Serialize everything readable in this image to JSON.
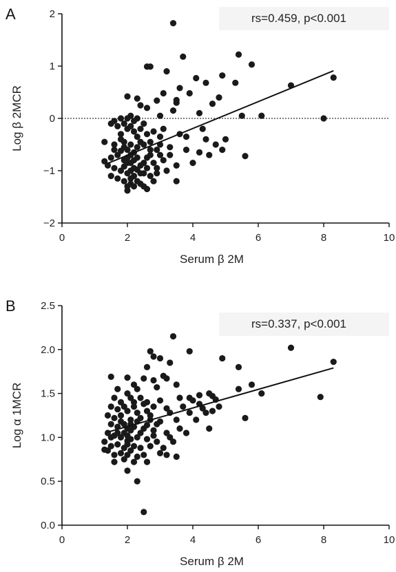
{
  "chart_data": [
    {
      "type": "scatter",
      "panel": "A",
      "xlabel": "Serum β 2M",
      "ylabel": "Log β 2MCR",
      "xlim": [
        0,
        10
      ],
      "ylim": [
        -2,
        2
      ],
      "x_ticks": [
        0,
        2,
        4,
        6,
        8,
        10
      ],
      "y_ticks": [
        -2,
        -1,
        0,
        1,
        2
      ],
      "x_tick_labels": [
        "0",
        "2",
        "4",
        "6",
        "8",
        "10"
      ],
      "y_tick_labels": [
        "−2",
        "−1",
        "0",
        "1",
        "2"
      ],
      "annotation": "rs=0.459, p<0.001",
      "reference_line_y": 0,
      "fit_line": {
        "x": [
          1.4,
          8.3
        ],
        "y": [
          -0.86,
          0.91
        ]
      },
      "points": [
        [
          3.4,
          1.82
        ],
        [
          5.4,
          1.22
        ],
        [
          3.7,
          1.18
        ],
        [
          5.8,
          1.03
        ],
        [
          2.6,
          0.99
        ],
        [
          2.7,
          0.99
        ],
        [
          3.2,
          0.9
        ],
        [
          4.9,
          0.82
        ],
        [
          4.1,
          0.77
        ],
        [
          4.4,
          0.68
        ],
        [
          5.3,
          0.68
        ],
        [
          7.0,
          0.63
        ],
        [
          8.3,
          0.78
        ],
        [
          3.6,
          0.58
        ],
        [
          3.1,
          0.48
        ],
        [
          3.9,
          0.48
        ],
        [
          2.0,
          0.42
        ],
        [
          2.3,
          0.38
        ],
        [
          4.8,
          0.4
        ],
        [
          2.9,
          0.34
        ],
        [
          3.5,
          0.3
        ],
        [
          3.5,
          0.35
        ],
        [
          4.6,
          0.28
        ],
        [
          2.4,
          0.25
        ],
        [
          2.6,
          0.2
        ],
        [
          3.4,
          0.15
        ],
        [
          4.2,
          0.1
        ],
        [
          6.1,
          0.05
        ],
        [
          8.0,
          0.0
        ],
        [
          5.5,
          0.05
        ],
        [
          3.0,
          0.05
        ],
        [
          1.6,
          -0.05
        ],
        [
          1.8,
          0.0
        ],
        [
          2.0,
          0.0
        ],
        [
          2.1,
          0.05
        ],
        [
          2.2,
          -0.05
        ],
        [
          2.3,
          0.0
        ],
        [
          1.5,
          -0.1
        ],
        [
          1.7,
          -0.15
        ],
        [
          1.9,
          -0.1
        ],
        [
          2.0,
          -0.2
        ],
        [
          2.1,
          -0.15
        ],
        [
          2.2,
          -0.25
        ],
        [
          2.4,
          -0.2
        ],
        [
          2.5,
          -0.1
        ],
        [
          2.6,
          -0.3
        ],
        [
          2.8,
          -0.25
        ],
        [
          3.1,
          -0.2
        ],
        [
          3.6,
          -0.3
        ],
        [
          4.4,
          -0.4
        ],
        [
          4.7,
          -0.5
        ],
        [
          5.0,
          -0.4
        ],
        [
          1.3,
          -0.45
        ],
        [
          1.6,
          -0.5
        ],
        [
          1.8,
          -0.4
        ],
        [
          1.9,
          -0.55
        ],
        [
          2.0,
          -0.6
        ],
        [
          2.1,
          -0.5
        ],
        [
          2.2,
          -0.65
        ],
        [
          2.3,
          -0.55
        ],
        [
          2.5,
          -0.5
        ],
        [
          2.7,
          -0.45
        ],
        [
          3.0,
          -0.5
        ],
        [
          3.3,
          -0.55
        ],
        [
          3.8,
          -0.6
        ],
        [
          4.2,
          -0.65
        ],
        [
          4.5,
          -0.7
        ],
        [
          4.9,
          -0.6
        ],
        [
          5.6,
          -0.72
        ],
        [
          1.5,
          -0.75
        ],
        [
          1.7,
          -0.7
        ],
        [
          1.9,
          -0.8
        ],
        [
          2.0,
          -0.75
        ],
        [
          2.1,
          -0.85
        ],
        [
          2.2,
          -0.8
        ],
        [
          2.4,
          -0.9
        ],
        [
          2.6,
          -0.75
        ],
        [
          2.8,
          -0.85
        ],
        [
          3.1,
          -0.8
        ],
        [
          3.5,
          -0.9
        ],
        [
          4.0,
          -0.85
        ],
        [
          1.3,
          -0.82
        ],
        [
          1.4,
          -0.9
        ],
        [
          1.6,
          -0.95
        ],
        [
          1.8,
          -1.0
        ],
        [
          1.9,
          -0.92
        ],
        [
          2.0,
          -1.05
        ],
        [
          2.1,
          -1.0
        ],
        [
          2.2,
          -1.1
        ],
        [
          2.3,
          -0.98
        ],
        [
          2.5,
          -1.05
        ],
        [
          2.7,
          -1.1
        ],
        [
          2.9,
          -0.95
        ],
        [
          3.2,
          -1.0
        ],
        [
          3.5,
          -1.2
        ],
        [
          1.5,
          -1.1
        ],
        [
          1.7,
          -1.15
        ],
        [
          1.9,
          -1.2
        ],
        [
          2.0,
          -1.3
        ],
        [
          2.1,
          -1.25
        ],
        [
          2.3,
          -1.2
        ],
        [
          2.5,
          -1.3
        ],
        [
          2.6,
          -1.35
        ],
        [
          2.2,
          -1.3
        ],
        [
          2.4,
          -1.25
        ],
        [
          2.8,
          -1.2
        ],
        [
          2.0,
          -1.38
        ],
        [
          1.8,
          -0.3
        ],
        [
          2.3,
          -0.35
        ],
        [
          2.7,
          -0.6
        ],
        [
          3.3,
          -0.7
        ],
        [
          2.9,
          -1.05
        ],
        [
          1.6,
          -0.6
        ],
        [
          2.5,
          -0.85
        ],
        [
          2.1,
          -0.7
        ],
        [
          3.0,
          -0.35
        ],
        [
          3.8,
          -0.35
        ],
        [
          2.4,
          -0.45
        ],
        [
          2.6,
          -0.95
        ],
        [
          1.9,
          -0.45
        ],
        [
          2.2,
          -0.95
        ],
        [
          2.0,
          -0.85
        ],
        [
          2.3,
          -0.75
        ],
        [
          1.8,
          -0.62
        ],
        [
          2.1,
          -1.15
        ],
        [
          2.4,
          -1.05
        ],
        [
          3.0,
          -0.7
        ],
        [
          2.7,
          -0.7
        ],
        [
          4.3,
          -0.2
        ],
        [
          2.9,
          -0.6
        ]
      ]
    },
    {
      "type": "scatter",
      "panel": "B",
      "xlabel": "Serum β 2M",
      "ylabel": "Log α 1MCR",
      "xlim": [
        0,
        10
      ],
      "ylim": [
        0,
        2.5
      ],
      "x_ticks": [
        0,
        2,
        4,
        6,
        8,
        10
      ],
      "y_ticks": [
        0,
        0.5,
        1.0,
        1.5,
        2.0,
        2.5
      ],
      "x_tick_labels": [
        "0",
        "2",
        "4",
        "6",
        "8",
        "10"
      ],
      "y_tick_labels": [
        "0.0",
        "0.5",
        "1.0",
        "1.5",
        "2.0",
        "2.5"
      ],
      "annotation": "rs=0.337, p<0.001",
      "fit_line": {
        "x": [
          1.4,
          8.3
        ],
        "y": [
          1.06,
          1.79
        ]
      },
      "points": [
        [
          3.4,
          2.15
        ],
        [
          7.0,
          2.02
        ],
        [
          3.9,
          1.98
        ],
        [
          2.7,
          1.98
        ],
        [
          2.8,
          1.92
        ],
        [
          3.0,
          1.9
        ],
        [
          4.9,
          1.9
        ],
        [
          3.3,
          1.85
        ],
        [
          5.4,
          1.8
        ],
        [
          8.3,
          1.86
        ],
        [
          2.6,
          1.8
        ],
        [
          3.1,
          1.7
        ],
        [
          3.2,
          1.67
        ],
        [
          1.5,
          1.69
        ],
        [
          2.0,
          1.68
        ],
        [
          2.5,
          1.67
        ],
        [
          2.8,
          1.65
        ],
        [
          3.5,
          1.6
        ],
        [
          5.8,
          1.6
        ],
        [
          2.2,
          1.6
        ],
        [
          2.9,
          1.57
        ],
        [
          5.4,
          1.55
        ],
        [
          1.7,
          1.55
        ],
        [
          2.3,
          1.55
        ],
        [
          6.1,
          1.5
        ],
        [
          4.5,
          1.5
        ],
        [
          4.2,
          1.48
        ],
        [
          4.6,
          1.47
        ],
        [
          7.9,
          1.46
        ],
        [
          3.6,
          1.45
        ],
        [
          4.0,
          1.42
        ],
        [
          2.0,
          1.5
        ],
        [
          2.1,
          1.45
        ],
        [
          1.6,
          1.45
        ],
        [
          1.8,
          1.4
        ],
        [
          2.4,
          1.45
        ],
        [
          2.6,
          1.4
        ],
        [
          3.0,
          1.42
        ],
        [
          4.7,
          1.43
        ],
        [
          1.9,
          1.35
        ],
        [
          2.2,
          1.35
        ],
        [
          2.5,
          1.38
        ],
        [
          2.8,
          1.35
        ],
        [
          3.2,
          1.33
        ],
        [
          3.7,
          1.35
        ],
        [
          4.3,
          1.33
        ],
        [
          4.8,
          1.35
        ],
        [
          1.5,
          1.35
        ],
        [
          1.7,
          1.32
        ],
        [
          2.0,
          1.3
        ],
        [
          2.3,
          1.28
        ],
        [
          2.6,
          1.3
        ],
        [
          3.3,
          1.28
        ],
        [
          3.9,
          1.28
        ],
        [
          4.4,
          1.28
        ],
        [
          1.4,
          1.25
        ],
        [
          1.6,
          1.22
        ],
        [
          1.8,
          1.25
        ],
        [
          2.1,
          1.2
        ],
        [
          2.4,
          1.22
        ],
        [
          2.7,
          1.2
        ],
        [
          3.0,
          1.18
        ],
        [
          3.5,
          1.2
        ],
        [
          4.1,
          1.2
        ],
        [
          5.6,
          1.22
        ],
        [
          1.5,
          1.15
        ],
        [
          1.7,
          1.12
        ],
        [
          1.9,
          1.15
        ],
        [
          2.0,
          1.1
        ],
        [
          2.2,
          1.12
        ],
        [
          2.5,
          1.1
        ],
        [
          2.8,
          1.08
        ],
        [
          3.2,
          1.05
        ],
        [
          3.8,
          1.05
        ],
        [
          4.5,
          1.1
        ],
        [
          1.4,
          1.05
        ],
        [
          1.6,
          1.02
        ],
        [
          1.8,
          1.0
        ],
        [
          2.0,
          1.02
        ],
        [
          2.1,
          0.98
        ],
        [
          2.3,
          1.0
        ],
        [
          2.6,
          0.98
        ],
        [
          2.9,
          0.95
        ],
        [
          3.4,
          0.95
        ],
        [
          1.3,
          0.95
        ],
        [
          1.5,
          0.9
        ],
        [
          1.7,
          0.92
        ],
        [
          1.9,
          0.88
        ],
        [
          2.0,
          0.92
        ],
        [
          2.2,
          0.9
        ],
        [
          2.4,
          0.88
        ],
        [
          2.7,
          0.9
        ],
        [
          3.1,
          0.88
        ],
        [
          1.4,
          0.85
        ],
        [
          1.6,
          0.8
        ],
        [
          1.8,
          0.82
        ],
        [
          2.0,
          0.8
        ],
        [
          2.1,
          0.85
        ],
        [
          2.3,
          0.78
        ],
        [
          2.5,
          0.8
        ],
        [
          3.0,
          0.82
        ],
        [
          3.5,
          0.78
        ],
        [
          1.3,
          0.86
        ],
        [
          1.6,
          0.72
        ],
        [
          1.9,
          0.75
        ],
        [
          2.2,
          0.72
        ],
        [
          2.0,
          0.62
        ],
        [
          2.6,
          0.72
        ],
        [
          3.2,
          0.8
        ],
        [
          2.3,
          0.5
        ],
        [
          2.5,
          0.15
        ],
        [
          1.9,
          1.05
        ],
        [
          2.1,
          1.15
        ],
        [
          2.4,
          1.05
        ],
        [
          2.7,
          1.25
        ],
        [
          1.8,
          1.18
        ],
        [
          2.2,
          1.4
        ],
        [
          2.9,
          1.15
        ],
        [
          3.6,
          1.1
        ],
        [
          4.2,
          1.38
        ],
        [
          2.0,
          0.96
        ],
        [
          2.3,
          1.18
        ],
        [
          1.7,
          1.05
        ],
        [
          2.6,
          1.14
        ],
        [
          3.3,
          1.0
        ],
        [
          2.8,
          1.02
        ],
        [
          1.5,
          1.0
        ],
        [
          2.1,
          1.08
        ],
        [
          3.9,
          1.45
        ],
        [
          4.6,
          1.3
        ]
      ]
    }
  ],
  "panels": [
    {
      "letter": "A"
    },
    {
      "letter": "B"
    }
  ]
}
